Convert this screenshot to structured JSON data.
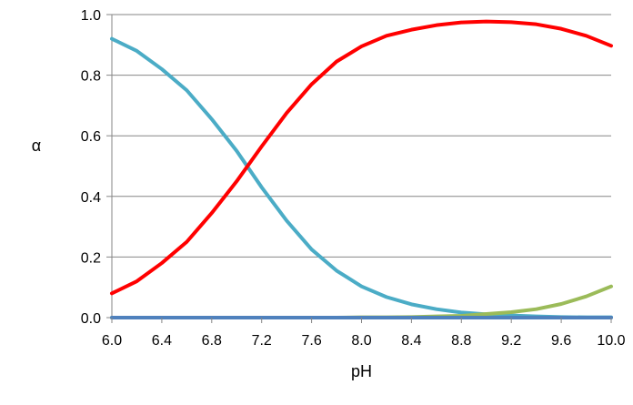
{
  "chart_data": {
    "type": "line",
    "title": "",
    "xlabel": "pH",
    "ylabel": "α",
    "xlim": [
      6.0,
      10.0
    ],
    "ylim": [
      0.0,
      1.0
    ],
    "grid": true,
    "legend": "none",
    "x": [
      6.0,
      6.2,
      6.4,
      6.6,
      6.8,
      7.0,
      7.2,
      7.4,
      7.6,
      7.8,
      8.0,
      8.2,
      8.4,
      8.6,
      8.8,
      9.0,
      9.2,
      9.4,
      9.6,
      9.8,
      10.0
    ],
    "x_tick_labels": [
      "6.0",
      "6.4",
      "6.8",
      "7.2",
      "7.6",
      "8.0",
      "8.4",
      "8.8",
      "9.2",
      "9.6",
      "10.0"
    ],
    "y_tick_labels": [
      "0.0",
      "0.2",
      "0.4",
      "0.6",
      "0.8",
      "1.0"
    ],
    "series": [
      {
        "color": "#4bacc6",
        "values": [
          0.92,
          0.88,
          0.82,
          0.75,
          0.655,
          0.55,
          0.43,
          0.32,
          0.225,
          0.155,
          0.103,
          0.068,
          0.044,
          0.028,
          0.017,
          0.011,
          0.007,
          0.004,
          0.002,
          0.001,
          0.001
        ]
      },
      {
        "color": "#ff0000",
        "values": [
          0.08,
          0.12,
          0.18,
          0.25,
          0.345,
          0.45,
          0.565,
          0.675,
          0.77,
          0.845,
          0.895,
          0.93,
          0.95,
          0.965,
          0.974,
          0.977,
          0.975,
          0.968,
          0.953,
          0.93,
          0.897
        ]
      },
      {
        "color": "#9bbb59",
        "values": [
          0.0,
          0.0,
          0.0,
          0.0,
          0.0,
          0.0,
          0.0,
          0.0,
          0.0,
          0.0,
          0.001,
          0.001,
          0.002,
          0.004,
          0.006,
          0.012,
          0.018,
          0.028,
          0.045,
          0.07,
          0.103
        ]
      },
      {
        "color": "#4f81bd",
        "values": [
          0.0,
          0.0,
          0.0,
          0.0,
          0.0,
          0.0,
          0.0,
          0.0,
          0.0,
          0.0,
          0.0,
          0.0,
          0.0,
          0.0,
          0.0,
          0.0,
          0.0,
          0.0,
          0.0,
          0.0,
          0.0
        ]
      }
    ]
  }
}
